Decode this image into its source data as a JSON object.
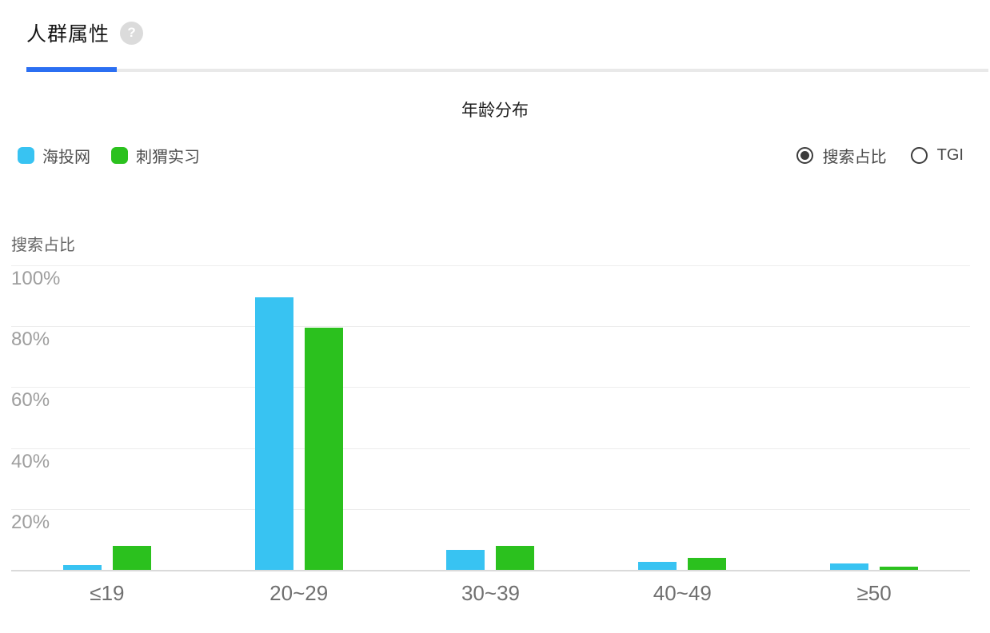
{
  "header": {
    "title": "人群属性",
    "help_glyph": "?"
  },
  "controls": {
    "metric_options": [
      {
        "label": "搜索占比",
        "selected": true
      },
      {
        "label": "TGI",
        "selected": false
      }
    ]
  },
  "colors": {
    "accent_blue": "#2b6ff2",
    "series_blue": "#38c3f2",
    "series_green": "#2bc11e",
    "gridline": "#ededed",
    "axis_line": "#dadada"
  },
  "chart_data": {
    "type": "bar",
    "title": "年龄分布",
    "ylabel": "搜索占比",
    "unit": "%",
    "categories": [
      "≤19",
      "20~29",
      "30~39",
      "40~49",
      "≥50"
    ],
    "series": [
      {
        "name": "海投网",
        "color": "#38c3f2",
        "values": [
          1.5,
          89.5,
          6.5,
          2.5,
          2
        ]
      },
      {
        "name": "刺猬实习",
        "color": "#2bc11e",
        "values": [
          8,
          79.5,
          8,
          4,
          1
        ]
      }
    ],
    "yticks": [
      "100%",
      "80%",
      "60%",
      "40%",
      "20%"
    ],
    "ylim": [
      0,
      100
    ],
    "grid": true,
    "legend_position": "top-left"
  }
}
